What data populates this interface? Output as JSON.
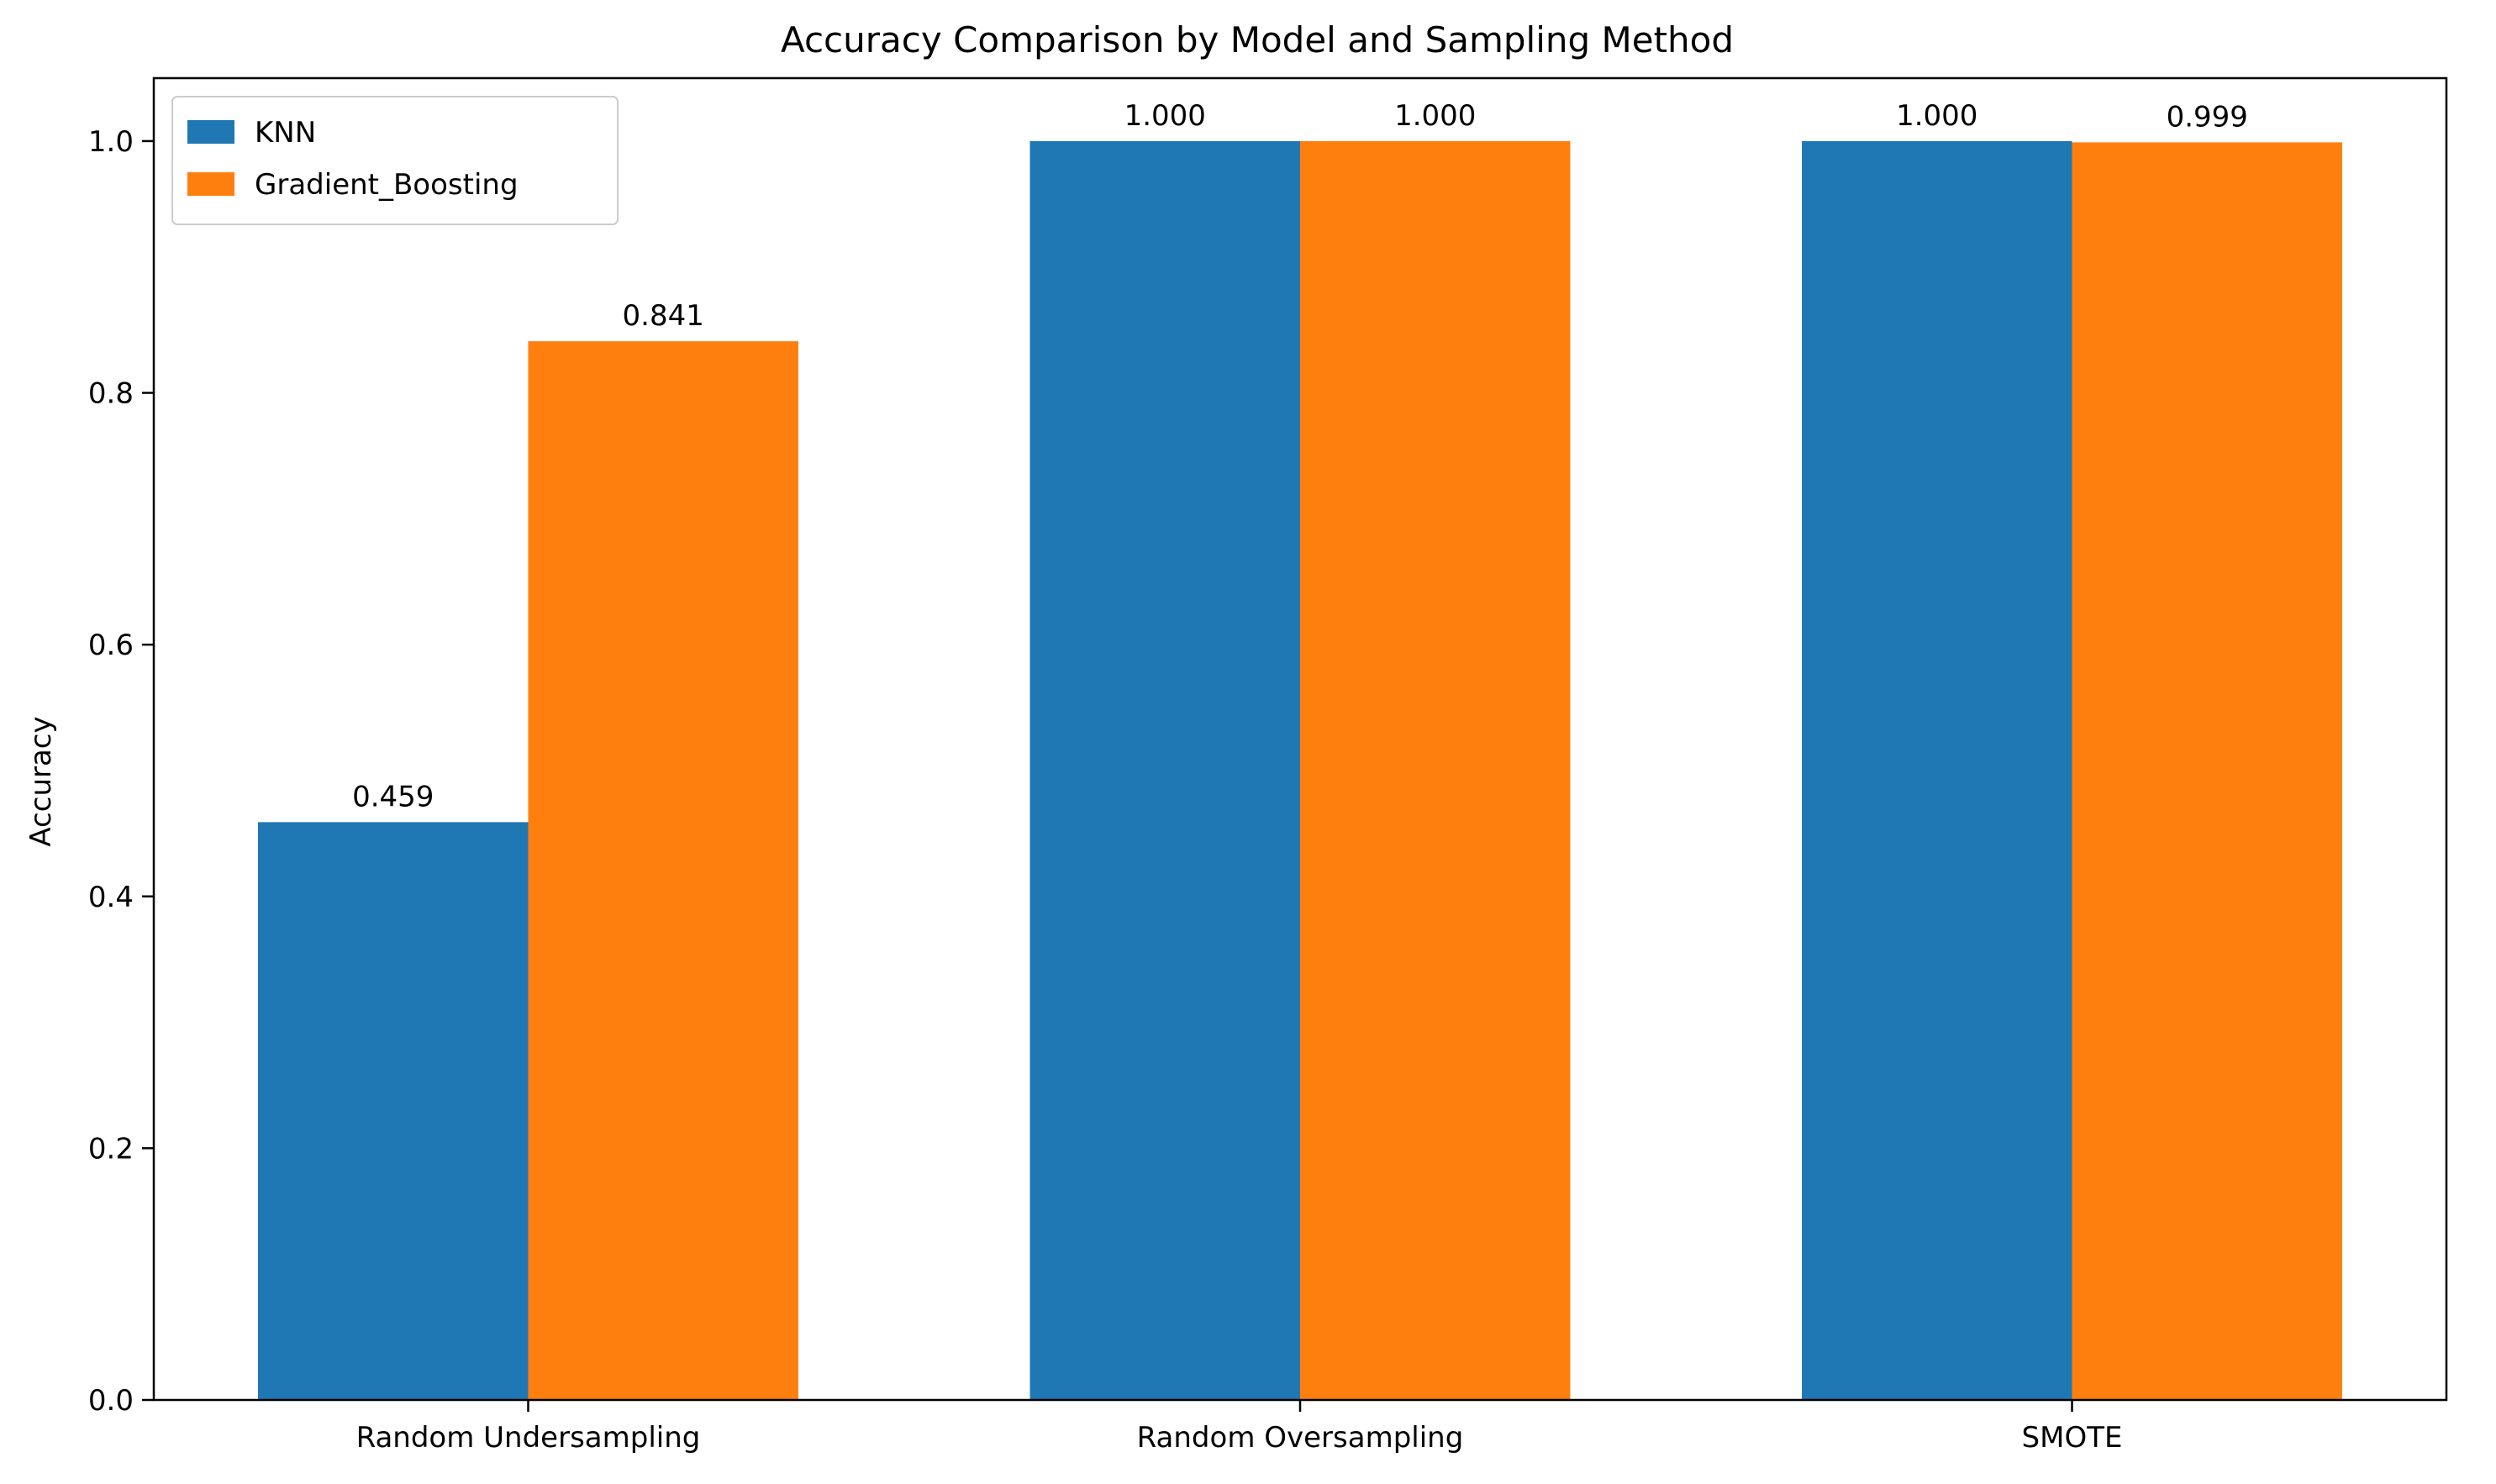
{
  "chart_data": {
    "type": "bar",
    "title": "Accuracy Comparison by Model and Sampling Method",
    "xlabel": "",
    "ylabel": "Accuracy",
    "categories": [
      "Random Undersampling",
      "Random Oversampling",
      "SMOTE"
    ],
    "series": [
      {
        "name": "KNN",
        "color": "#1f77b4",
        "values": [
          0.459,
          1.0,
          1.0
        ],
        "labels": [
          "0.459",
          "1.000",
          "1.000"
        ]
      },
      {
        "name": "Gradient_Boosting",
        "color": "#ff7f0e",
        "values": [
          0.841,
          1.0,
          0.999
        ],
        "labels": [
          "0.841",
          "1.000",
          "0.999"
        ]
      }
    ],
    "ylim": [
      0,
      1.05
    ],
    "yticks": [
      0.0,
      0.2,
      0.4,
      0.6,
      0.8,
      1.0
    ],
    "ytick_labels": [
      "0.0",
      "0.2",
      "0.4",
      "0.6",
      "0.8",
      "1.0"
    ],
    "grid": false,
    "legend_position": "top-left"
  }
}
